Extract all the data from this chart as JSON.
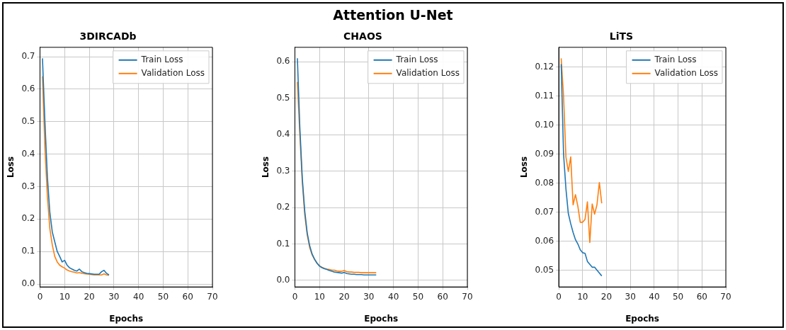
{
  "chart_data": [
    {
      "type": "line",
      "title": "3DIRCADb",
      "annotations": [
        "Attention U-Net"
      ],
      "xlabel": "Epochs",
      "ylabel": "Loss",
      "x": [
        1,
        2,
        3,
        4,
        5,
        6,
        7,
        8,
        9,
        10,
        11,
        12,
        13,
        14,
        15,
        16,
        17,
        18,
        19,
        20,
        21,
        22,
        23,
        24,
        25,
        26,
        27,
        28
      ],
      "series": [
        {
          "name": "Train Loss",
          "color": "#1f77b4",
          "values": [
            0.695,
            0.5,
            0.33,
            0.22,
            0.16,
            0.13,
            0.1,
            0.085,
            0.068,
            0.073,
            0.058,
            0.05,
            0.046,
            0.042,
            0.04,
            0.046,
            0.038,
            0.035,
            0.033,
            0.032,
            0.031,
            0.03,
            0.03,
            0.03,
            0.038,
            0.042,
            0.033,
            0.028
          ]
        },
        {
          "name": "Validation Loss",
          "color": "#ff7f0e",
          "values": [
            0.64,
            0.42,
            0.27,
            0.17,
            0.12,
            0.085,
            0.068,
            0.058,
            0.053,
            0.049,
            0.043,
            0.04,
            0.038,
            0.036,
            0.034,
            0.035,
            0.033,
            0.032,
            0.031,
            0.03,
            0.029,
            0.028,
            0.028,
            0.028,
            0.028,
            0.031,
            0.028,
            0.027
          ]
        }
      ],
      "xlim": [
        0,
        70
      ],
      "xticks": [
        0,
        10,
        20,
        30,
        40,
        50,
        60,
        70
      ],
      "ylim": [
        -0.009,
        0.729
      ],
      "yticks": [
        {
          "value": 0,
          "label": "0.0"
        },
        {
          "value": 0.1,
          "label": "0.1"
        },
        {
          "value": 0.2,
          "label": "0.2"
        },
        {
          "value": 0.3,
          "label": "0.3"
        },
        {
          "value": 0.4,
          "label": "0.4"
        },
        {
          "value": 0.5,
          "label": "0.5"
        },
        {
          "value": 0.6,
          "label": "0.6"
        },
        {
          "value": 0.7,
          "label": "0.7"
        }
      ],
      "grid": true,
      "legend": "top right",
      "marker": "none",
      "line_style": "solid"
    },
    {
      "type": "line",
      "title": "CHAOS",
      "xlabel": "Epochs",
      "ylabel": "Loss",
      "x": [
        1,
        2,
        3,
        4,
        5,
        6,
        7,
        8,
        9,
        10,
        11,
        12,
        13,
        14,
        15,
        16,
        17,
        18,
        19,
        20,
        21,
        22,
        23,
        24,
        25,
        26,
        27,
        28,
        29,
        30,
        31,
        32,
        33
      ],
      "series": [
        {
          "name": "Train Loss",
          "color": "#1f77b4",
          "values": [
            0.61,
            0.42,
            0.28,
            0.19,
            0.13,
            0.095,
            0.072,
            0.058,
            0.047,
            0.039,
            0.035,
            0.032,
            0.03,
            0.027,
            0.025,
            0.023,
            0.022,
            0.021,
            0.02,
            0.022,
            0.019,
            0.018,
            0.017,
            0.017,
            0.016,
            0.016,
            0.016,
            0.015,
            0.015,
            0.015,
            0.015,
            0.015,
            0.015
          ]
        },
        {
          "name": "Validation Loss",
          "color": "#ff7f0e",
          "values": [
            0.545,
            0.4,
            0.27,
            0.18,
            0.125,
            0.09,
            0.07,
            0.057,
            0.047,
            0.04,
            0.036,
            0.033,
            0.031,
            0.03,
            0.028,
            0.028,
            0.026,
            0.025,
            0.025,
            0.027,
            0.024,
            0.023,
            0.023,
            0.022,
            0.022,
            0.022,
            0.021,
            0.021,
            0.021,
            0.021,
            0.021,
            0.021,
            0.021
          ]
        }
      ],
      "xlim": [
        0,
        70
      ],
      "xticks": [
        0,
        10,
        20,
        30,
        40,
        50,
        60,
        70
      ],
      "ylim": [
        -0.018,
        0.64
      ],
      "yticks": [
        {
          "value": 0,
          "label": "0.0"
        },
        {
          "value": 0.1,
          "label": "0.1"
        },
        {
          "value": 0.2,
          "label": "0.2"
        },
        {
          "value": 0.3,
          "label": "0.3"
        },
        {
          "value": 0.4,
          "label": "0.4"
        },
        {
          "value": 0.5,
          "label": "0.5"
        },
        {
          "value": 0.6,
          "label": "0.6"
        }
      ],
      "grid": true,
      "legend": "top right",
      "marker": "none",
      "line_style": "solid"
    },
    {
      "type": "line",
      "title": "LiTS",
      "xlabel": "Epochs",
      "ylabel": "Loss",
      "x": [
        1,
        2,
        3,
        4,
        5,
        6,
        7,
        8,
        9,
        10,
        11,
        12,
        13,
        14,
        15,
        16,
        17,
        18
      ],
      "series": [
        {
          "name": "Train Loss",
          "color": "#1f77b4",
          "values": [
            0.121,
            0.09,
            0.078,
            0.0695,
            0.066,
            0.063,
            0.0605,
            0.059,
            0.057,
            0.056,
            0.0558,
            0.053,
            0.052,
            0.051,
            0.051,
            0.05,
            0.049,
            0.048
          ]
        },
        {
          "name": "Validation Loss",
          "color": "#ff7f0e",
          "values": [
            0.123,
            0.11,
            0.089,
            0.084,
            0.089,
            0.0725,
            0.076,
            0.072,
            0.0665,
            0.0665,
            0.0675,
            0.0735,
            0.0595,
            0.0728,
            0.0693,
            0.0725,
            0.0802,
            0.073
          ]
        }
      ],
      "xlim": [
        0,
        70
      ],
      "xticks": [
        0,
        10,
        20,
        30,
        40,
        50,
        60,
        70
      ],
      "ylim": [
        0.0442,
        0.1268
      ],
      "yticks": [
        {
          "value": 0.05,
          "label": "0.05"
        },
        {
          "value": 0.06,
          "label": "0.06"
        },
        {
          "value": 0.07,
          "label": "0.07"
        },
        {
          "value": 0.08,
          "label": "0.08"
        },
        {
          "value": 0.09,
          "label": "0.09"
        },
        {
          "value": 0.1,
          "label": "0.10"
        },
        {
          "value": 0.11,
          "label": "0.11"
        },
        {
          "value": 0.12,
          "label": "0.12"
        }
      ],
      "grid": true,
      "legend": "top right",
      "marker": "none",
      "line_style": "solid"
    }
  ]
}
